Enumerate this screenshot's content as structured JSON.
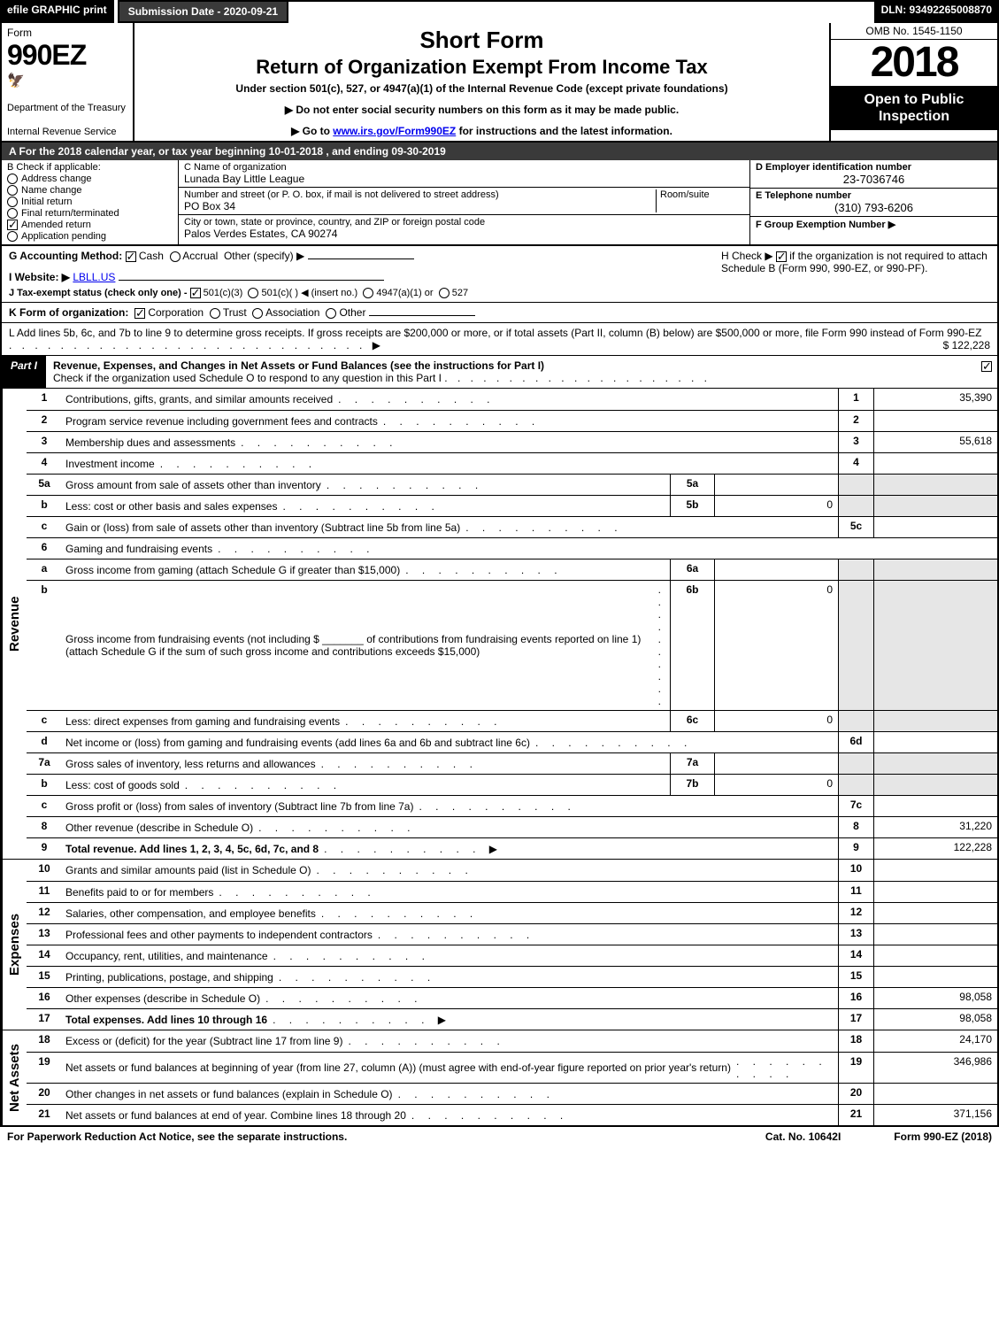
{
  "topbar": {
    "efile": "efile GRAPHIC print",
    "subdate_label": "Submission Date - 2020-09-21",
    "dln": "DLN: 93492265008870"
  },
  "header": {
    "form_word": "Form",
    "form_number": "990EZ",
    "dept": "Department of the Treasury",
    "irs": "Internal Revenue Service",
    "title1": "Short Form",
    "title2": "Return of Organization Exempt From Income Tax",
    "subline": "Under section 501(c), 527, or 4947(a)(1) of the Internal Revenue Code (except private foundations)",
    "directive1": "▶ Do not enter social security numbers on this form as it may be made public.",
    "directive2_pre": "▶ Go to ",
    "directive2_link": "www.irs.gov/Form990EZ",
    "directive2_post": " for instructions and the latest information.",
    "omb": "OMB No. 1545-1150",
    "year": "2018",
    "open": "Open to Public Inspection"
  },
  "rowA": {
    "text_pre": "A For the 2018 calendar year, or tax year beginning ",
    "begin": "10-01-2018",
    "mid": " , and ending ",
    "end": "09-30-2019"
  },
  "boxB": {
    "label": "B Check if applicable:",
    "opts": [
      "Address change",
      "Name change",
      "Initial return",
      "Final return/terminated",
      "Amended return",
      "Application pending"
    ],
    "checked_index": 4
  },
  "boxC": {
    "c_label": "C Name of organization",
    "c_value": "Lunada Bay Little League",
    "addr_label": "Number and street (or P. O. box, if mail is not delivered to street address)",
    "addr_value": "PO Box 34",
    "room_label": "Room/suite",
    "city_label": "City or town, state or province, country, and ZIP or foreign postal code",
    "city_value": "Palos Verdes Estates, CA  90274"
  },
  "boxD": {
    "label": "D Employer identification number",
    "value": "23-7036746"
  },
  "boxE": {
    "label": "E Telephone number",
    "value": "(310) 793-6206"
  },
  "boxF": {
    "label": "F Group Exemption Number ▶",
    "value": ""
  },
  "lineG": {
    "label": "G Accounting Method:",
    "cash": "Cash",
    "accrual": "Accrual",
    "other": "Other (specify) ▶",
    "cash_checked": true
  },
  "lineH": {
    "pre": "H Check ▶ ",
    "post": " if the organization is not required to attach Schedule B (Form 990, 990-EZ, or 990-PF).",
    "checked": true
  },
  "lineI": {
    "label": "I Website: ▶",
    "value": "LBLL.US"
  },
  "lineJ": {
    "label": "J Tax-exempt status (check only one) - ",
    "opt1": "501(c)(3)",
    "opt2": "501(c)(   ) ◀ (insert no.)",
    "opt3": "4947(a)(1) or",
    "opt4": "527",
    "checked": 0
  },
  "lineK": {
    "label": "K Form of organization:",
    "opts": [
      "Corporation",
      "Trust",
      "Association",
      "Other"
    ],
    "checked": 0
  },
  "lineL": {
    "text": "L Add lines 5b, 6c, and 7b to line 9 to determine gross receipts. If gross receipts are $200,000 or more, or if total assets (Part II, column (B) below) are $500,000 or more, file Form 990 instead of Form 990-EZ",
    "amount": "$ 122,228"
  },
  "partI": {
    "label": "Part I",
    "title": "Revenue, Expenses, and Changes in Net Assets or Fund Balances (see the instructions for Part I)",
    "checkline": "Check if the organization used Schedule O to respond to any question in this Part I",
    "checked": true
  },
  "sections": {
    "revenue_label": "Revenue",
    "expenses_label": "Expenses",
    "netassets_label": "Net Assets"
  },
  "rows": [
    {
      "n": "1",
      "d": "Contributions, gifts, grants, and similar amounts received",
      "rn": "1",
      "amt": "35,390"
    },
    {
      "n": "2",
      "d": "Program service revenue including government fees and contracts",
      "rn": "2",
      "amt": ""
    },
    {
      "n": "3",
      "d": "Membership dues and assessments",
      "rn": "3",
      "amt": "55,618"
    },
    {
      "n": "4",
      "d": "Investment income",
      "rn": "4",
      "amt": ""
    },
    {
      "n": "5a",
      "d": "Gross amount from sale of assets other than inventory",
      "sub": "5a",
      "subval": "",
      "noamt": true
    },
    {
      "n": "b",
      "d": "Less: cost or other basis and sales expenses",
      "sub": "5b",
      "subval": "0",
      "noamt": true
    },
    {
      "n": "c",
      "d": "Gain or (loss) from sale of assets other than inventory (Subtract line 5b from line 5a)",
      "rn": "5c",
      "amt": ""
    },
    {
      "n": "6",
      "d": "Gaming and fundraising events",
      "noamt": true,
      "nornum": true
    },
    {
      "n": "a",
      "d": "Gross income from gaming (attach Schedule G if greater than $15,000)",
      "sub": "6a",
      "subval": "",
      "noamt": true
    },
    {
      "n": "b",
      "d": "Gross income from fundraising events (not including $ _______ of contributions from fundraising events reported on line 1) (attach Schedule G if the sum of such gross income and contributions exceeds $15,000)",
      "sub": "6b",
      "subval": "0",
      "noamt": true
    },
    {
      "n": "c",
      "d": "Less: direct expenses from gaming and fundraising events",
      "sub": "6c",
      "subval": "0",
      "noamt": true
    },
    {
      "n": "d",
      "d": "Net income or (loss) from gaming and fundraising events (add lines 6a and 6b and subtract line 6c)",
      "rn": "6d",
      "amt": ""
    },
    {
      "n": "7a",
      "d": "Gross sales of inventory, less returns and allowances",
      "sub": "7a",
      "subval": "",
      "noamt": true
    },
    {
      "n": "b",
      "d": "Less: cost of goods sold",
      "sub": "7b",
      "subval": "0",
      "noamt": true
    },
    {
      "n": "c",
      "d": "Gross profit or (loss) from sales of inventory (Subtract line 7b from line 7a)",
      "rn": "7c",
      "amt": ""
    },
    {
      "n": "8",
      "d": "Other revenue (describe in Schedule O)",
      "rn": "8",
      "amt": "31,220"
    },
    {
      "n": "9",
      "d": "Total revenue. Add lines 1, 2, 3, 4, 5c, 6d, 7c, and 8",
      "rn": "9",
      "amt": "122,228",
      "bold": true,
      "arrow": true
    },
    {
      "n": "10",
      "d": "Grants and similar amounts paid (list in Schedule O)",
      "rn": "10",
      "amt": ""
    },
    {
      "n": "11",
      "d": "Benefits paid to or for members",
      "rn": "11",
      "amt": ""
    },
    {
      "n": "12",
      "d": "Salaries, other compensation, and employee benefits",
      "rn": "12",
      "amt": ""
    },
    {
      "n": "13",
      "d": "Professional fees and other payments to independent contractors",
      "rn": "13",
      "amt": ""
    },
    {
      "n": "14",
      "d": "Occupancy, rent, utilities, and maintenance",
      "rn": "14",
      "amt": ""
    },
    {
      "n": "15",
      "d": "Printing, publications, postage, and shipping",
      "rn": "15",
      "amt": ""
    },
    {
      "n": "16",
      "d": "Other expenses (describe in Schedule O)",
      "rn": "16",
      "amt": "98,058"
    },
    {
      "n": "17",
      "d": "Total expenses. Add lines 10 through 16",
      "rn": "17",
      "amt": "98,058",
      "bold": true,
      "arrow": true
    },
    {
      "n": "18",
      "d": "Excess or (deficit) for the year (Subtract line 17 from line 9)",
      "rn": "18",
      "amt": "24,170"
    },
    {
      "n": "19",
      "d": "Net assets or fund balances at beginning of year (from line 27, column (A)) (must agree with end-of-year figure reported on prior year's return)",
      "rn": "19",
      "amt": "346,986"
    },
    {
      "n": "20",
      "d": "Other changes in net assets or fund balances (explain in Schedule O)",
      "rn": "20",
      "amt": ""
    },
    {
      "n": "21",
      "d": "Net assets or fund balances at end of year. Combine lines 18 through 20",
      "rn": "21",
      "amt": "371,156"
    }
  ],
  "row_section_breaks": {
    "revenue_end": 17,
    "expenses_end": 25
  },
  "footer": {
    "left": "For Paperwork Reduction Act Notice, see the separate instructions.",
    "mid": "Cat. No. 10642I",
    "right": "Form 990-EZ (2018)"
  }
}
